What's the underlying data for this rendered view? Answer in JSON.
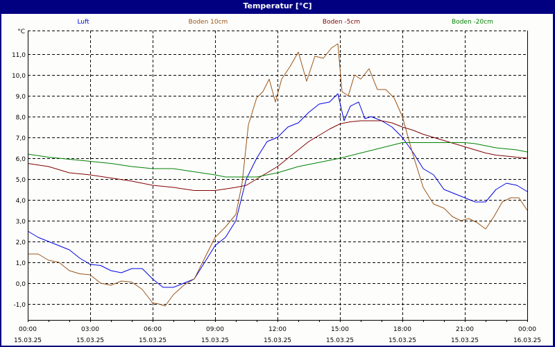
{
  "window": {
    "title": "Temperatur [°C]",
    "title_color": "#000080"
  },
  "chart_data": {
    "type": "line",
    "title": "Temperatur [°C]",
    "xlabel": "",
    "ylabel": "°C",
    "ylim": [
      -1.77,
      12.0
    ],
    "xlim_hours": [
      0,
      24
    ],
    "grid": true,
    "legend_position": "top",
    "y_ticks": [
      "11,0",
      "10,0",
      "9,0",
      "8,0",
      "7,0",
      "6,0",
      "5,0",
      "4,0",
      "3,0",
      "2,0",
      "1,0",
      "0,0",
      "-1,0"
    ],
    "y_tick_values": [
      11,
      10,
      9,
      8,
      7,
      6,
      5,
      4,
      3,
      2,
      1,
      0,
      -1
    ],
    "x_ticks": [
      {
        "time": "00:00",
        "date": "15.03.25",
        "hour": 0
      },
      {
        "time": "03:00",
        "date": "15.03.25",
        "hour": 3
      },
      {
        "time": "06:00",
        "date": "15.03.25",
        "hour": 6
      },
      {
        "time": "09:00",
        "date": "15.03.25",
        "hour": 9
      },
      {
        "time": "12:00",
        "date": "15.03.25",
        "hour": 12
      },
      {
        "time": "15:00",
        "date": "15.03.25",
        "hour": 15
      },
      {
        "time": "18:00",
        "date": "15.03.25",
        "hour": 18
      },
      {
        "time": "21:00",
        "date": "15.03.25",
        "hour": 21
      },
      {
        "time": "00:00",
        "date": "16.03.25",
        "hour": 24
      }
    ],
    "series": [
      {
        "name": "Luft",
        "color": "#0000e0",
        "x": [
          0,
          0.5,
          1,
          1.5,
          2,
          2.5,
          3,
          3.5,
          4,
          4.5,
          5,
          5.5,
          6,
          6.5,
          7,
          7.5,
          8,
          8.5,
          9,
          9.5,
          10,
          10.5,
          11,
          11.5,
          12,
          12.5,
          13,
          13.5,
          14,
          14.5,
          14.9,
          15.2,
          15.5,
          15.9,
          16.2,
          16.5,
          17,
          17.5,
          18,
          18.5,
          19,
          19.5,
          20,
          20.5,
          21,
          21.5,
          22,
          22.5,
          23,
          23.5,
          24
        ],
        "values": [
          2.5,
          2.2,
          2.0,
          1.8,
          1.6,
          1.2,
          0.9,
          0.85,
          0.6,
          0.5,
          0.7,
          0.7,
          0.2,
          -0.2,
          -0.2,
          0.0,
          0.2,
          1.0,
          1.8,
          2.2,
          3.0,
          5.0,
          6.0,
          6.8,
          7.0,
          7.5,
          7.7,
          8.2,
          8.6,
          8.7,
          9.1,
          7.8,
          8.5,
          8.7,
          7.9,
          8.0,
          7.8,
          7.5,
          7.0,
          6.3,
          5.5,
          5.2,
          4.5,
          4.3,
          4.1,
          3.9,
          3.9,
          4.5,
          4.8,
          4.7,
          4.4
        ]
      },
      {
        "name": "Boden 10cm",
        "color": "#9a5214",
        "x": [
          0,
          0.5,
          1,
          1.5,
          2,
          2.5,
          3,
          3.5,
          4,
          4.5,
          5,
          5.5,
          6,
          6.3,
          6.6,
          7,
          7.5,
          8,
          8.5,
          9,
          9.5,
          10,
          10.3,
          10.6,
          11,
          11.3,
          11.6,
          11.9,
          12.2,
          12.6,
          13.0,
          13.4,
          13.8,
          14.2,
          14.6,
          14.9,
          15.1,
          15.4,
          15.7,
          16.0,
          16.4,
          16.8,
          17.2,
          17.6,
          18,
          18.5,
          19,
          19.5,
          20,
          20.4,
          20.8,
          21.2,
          21.6,
          22,
          22.4,
          22.8,
          23.2,
          23.6,
          24
        ],
        "values": [
          1.4,
          1.4,
          1.1,
          1.0,
          0.6,
          0.45,
          0.4,
          0.0,
          -0.1,
          0.1,
          0.05,
          -0.3,
          -0.95,
          -1.0,
          -1.1,
          -0.55,
          -0.1,
          0.2,
          1.2,
          2.2,
          2.7,
          3.3,
          4.8,
          7.6,
          8.9,
          9.2,
          9.8,
          8.7,
          9.8,
          10.4,
          11.1,
          9.7,
          10.9,
          10.8,
          11.3,
          11.5,
          9.2,
          9.0,
          10.0,
          9.8,
          10.3,
          9.3,
          9.3,
          8.9,
          8.0,
          6.2,
          4.6,
          3.8,
          3.6,
          3.2,
          3.0,
          3.1,
          2.9,
          2.6,
          3.2,
          3.9,
          4.1,
          4.1,
          3.5
        ]
      },
      {
        "name": "Boden -5cm",
        "color": "#800000",
        "x": [
          0,
          1,
          2,
          3,
          4,
          5,
          6,
          7,
          8,
          9,
          10,
          10.5,
          11,
          11.5,
          12,
          12.5,
          13,
          13.5,
          14,
          14.5,
          15,
          15.5,
          16,
          16.5,
          17,
          17.5,
          18,
          18.5,
          19,
          19.5,
          20,
          20.5,
          21,
          21.5,
          22,
          22.5,
          23,
          23.5,
          24
        ],
        "values": [
          5.75,
          5.6,
          5.3,
          5.2,
          5.05,
          4.9,
          4.7,
          4.6,
          4.45,
          4.45,
          4.6,
          4.7,
          5.0,
          5.3,
          5.6,
          6.0,
          6.4,
          6.8,
          7.1,
          7.4,
          7.65,
          7.75,
          7.8,
          7.8,
          7.8,
          7.7,
          7.5,
          7.35,
          7.15,
          7.0,
          6.85,
          6.7,
          6.55,
          6.4,
          6.25,
          6.15,
          6.1,
          6.05,
          6.0
        ]
      },
      {
        "name": "Boden -20cm",
        "color": "#008000",
        "x": [
          0,
          1,
          2,
          3,
          4,
          5,
          6,
          7,
          8,
          9,
          9.5,
          10,
          11,
          12,
          13,
          14,
          15,
          16,
          17,
          18,
          18.5,
          19,
          20,
          21,
          21.5,
          22,
          22.5,
          23,
          23.5,
          24
        ],
        "values": [
          6.2,
          6.05,
          5.95,
          5.85,
          5.75,
          5.6,
          5.5,
          5.5,
          5.35,
          5.2,
          5.1,
          5.1,
          5.1,
          5.3,
          5.6,
          5.8,
          6.0,
          6.25,
          6.5,
          6.75,
          6.75,
          6.75,
          6.75,
          6.75,
          6.7,
          6.6,
          6.5,
          6.45,
          6.4,
          6.3
        ]
      }
    ]
  }
}
